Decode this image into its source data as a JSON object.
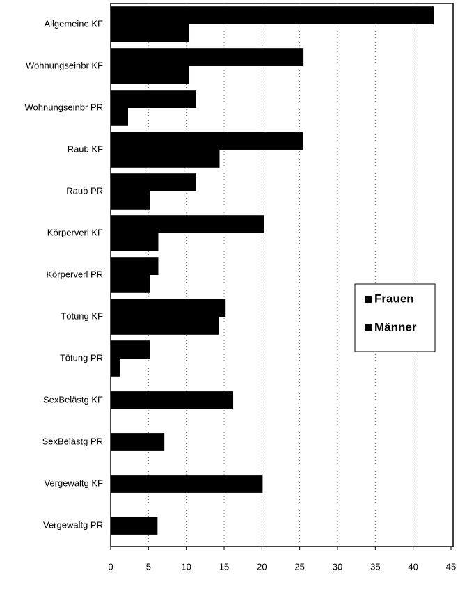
{
  "chart_data": {
    "type": "bar",
    "orientation": "horizontal",
    "categories": [
      "Allgemeine KF",
      "Wohnungseinbr KF",
      "Wohnungseinbr PR",
      "Raub KF",
      "Raub PR",
      "Körperverl KF",
      "Körperverl PR",
      "Tötung KF",
      "Tötung PR",
      "SexBelästg KF",
      "SexBelästg PR",
      "Vergewaltg KF",
      "Vergewaltg PR"
    ],
    "series": [
      {
        "name": "Frauen",
        "color": "#000000",
        "values": [
          42.7,
          25.5,
          11.3,
          25.4,
          11.3,
          20.3,
          6.3,
          15.2,
          5.2,
          16.2,
          7.1,
          20.1,
          6.2
        ]
      },
      {
        "name": "Männer",
        "color": "#000000",
        "values": [
          10.4,
          10.4,
          2.3,
          14.4,
          5.2,
          6.3,
          5.2,
          14.3,
          1.2,
          null,
          null,
          null,
          null
        ]
      }
    ],
    "xlim": [
      0,
      45
    ],
    "xticks": [
      0,
      5,
      10,
      15,
      20,
      25,
      30,
      35,
      40,
      45
    ],
    "grid": true,
    "legend": "right"
  }
}
